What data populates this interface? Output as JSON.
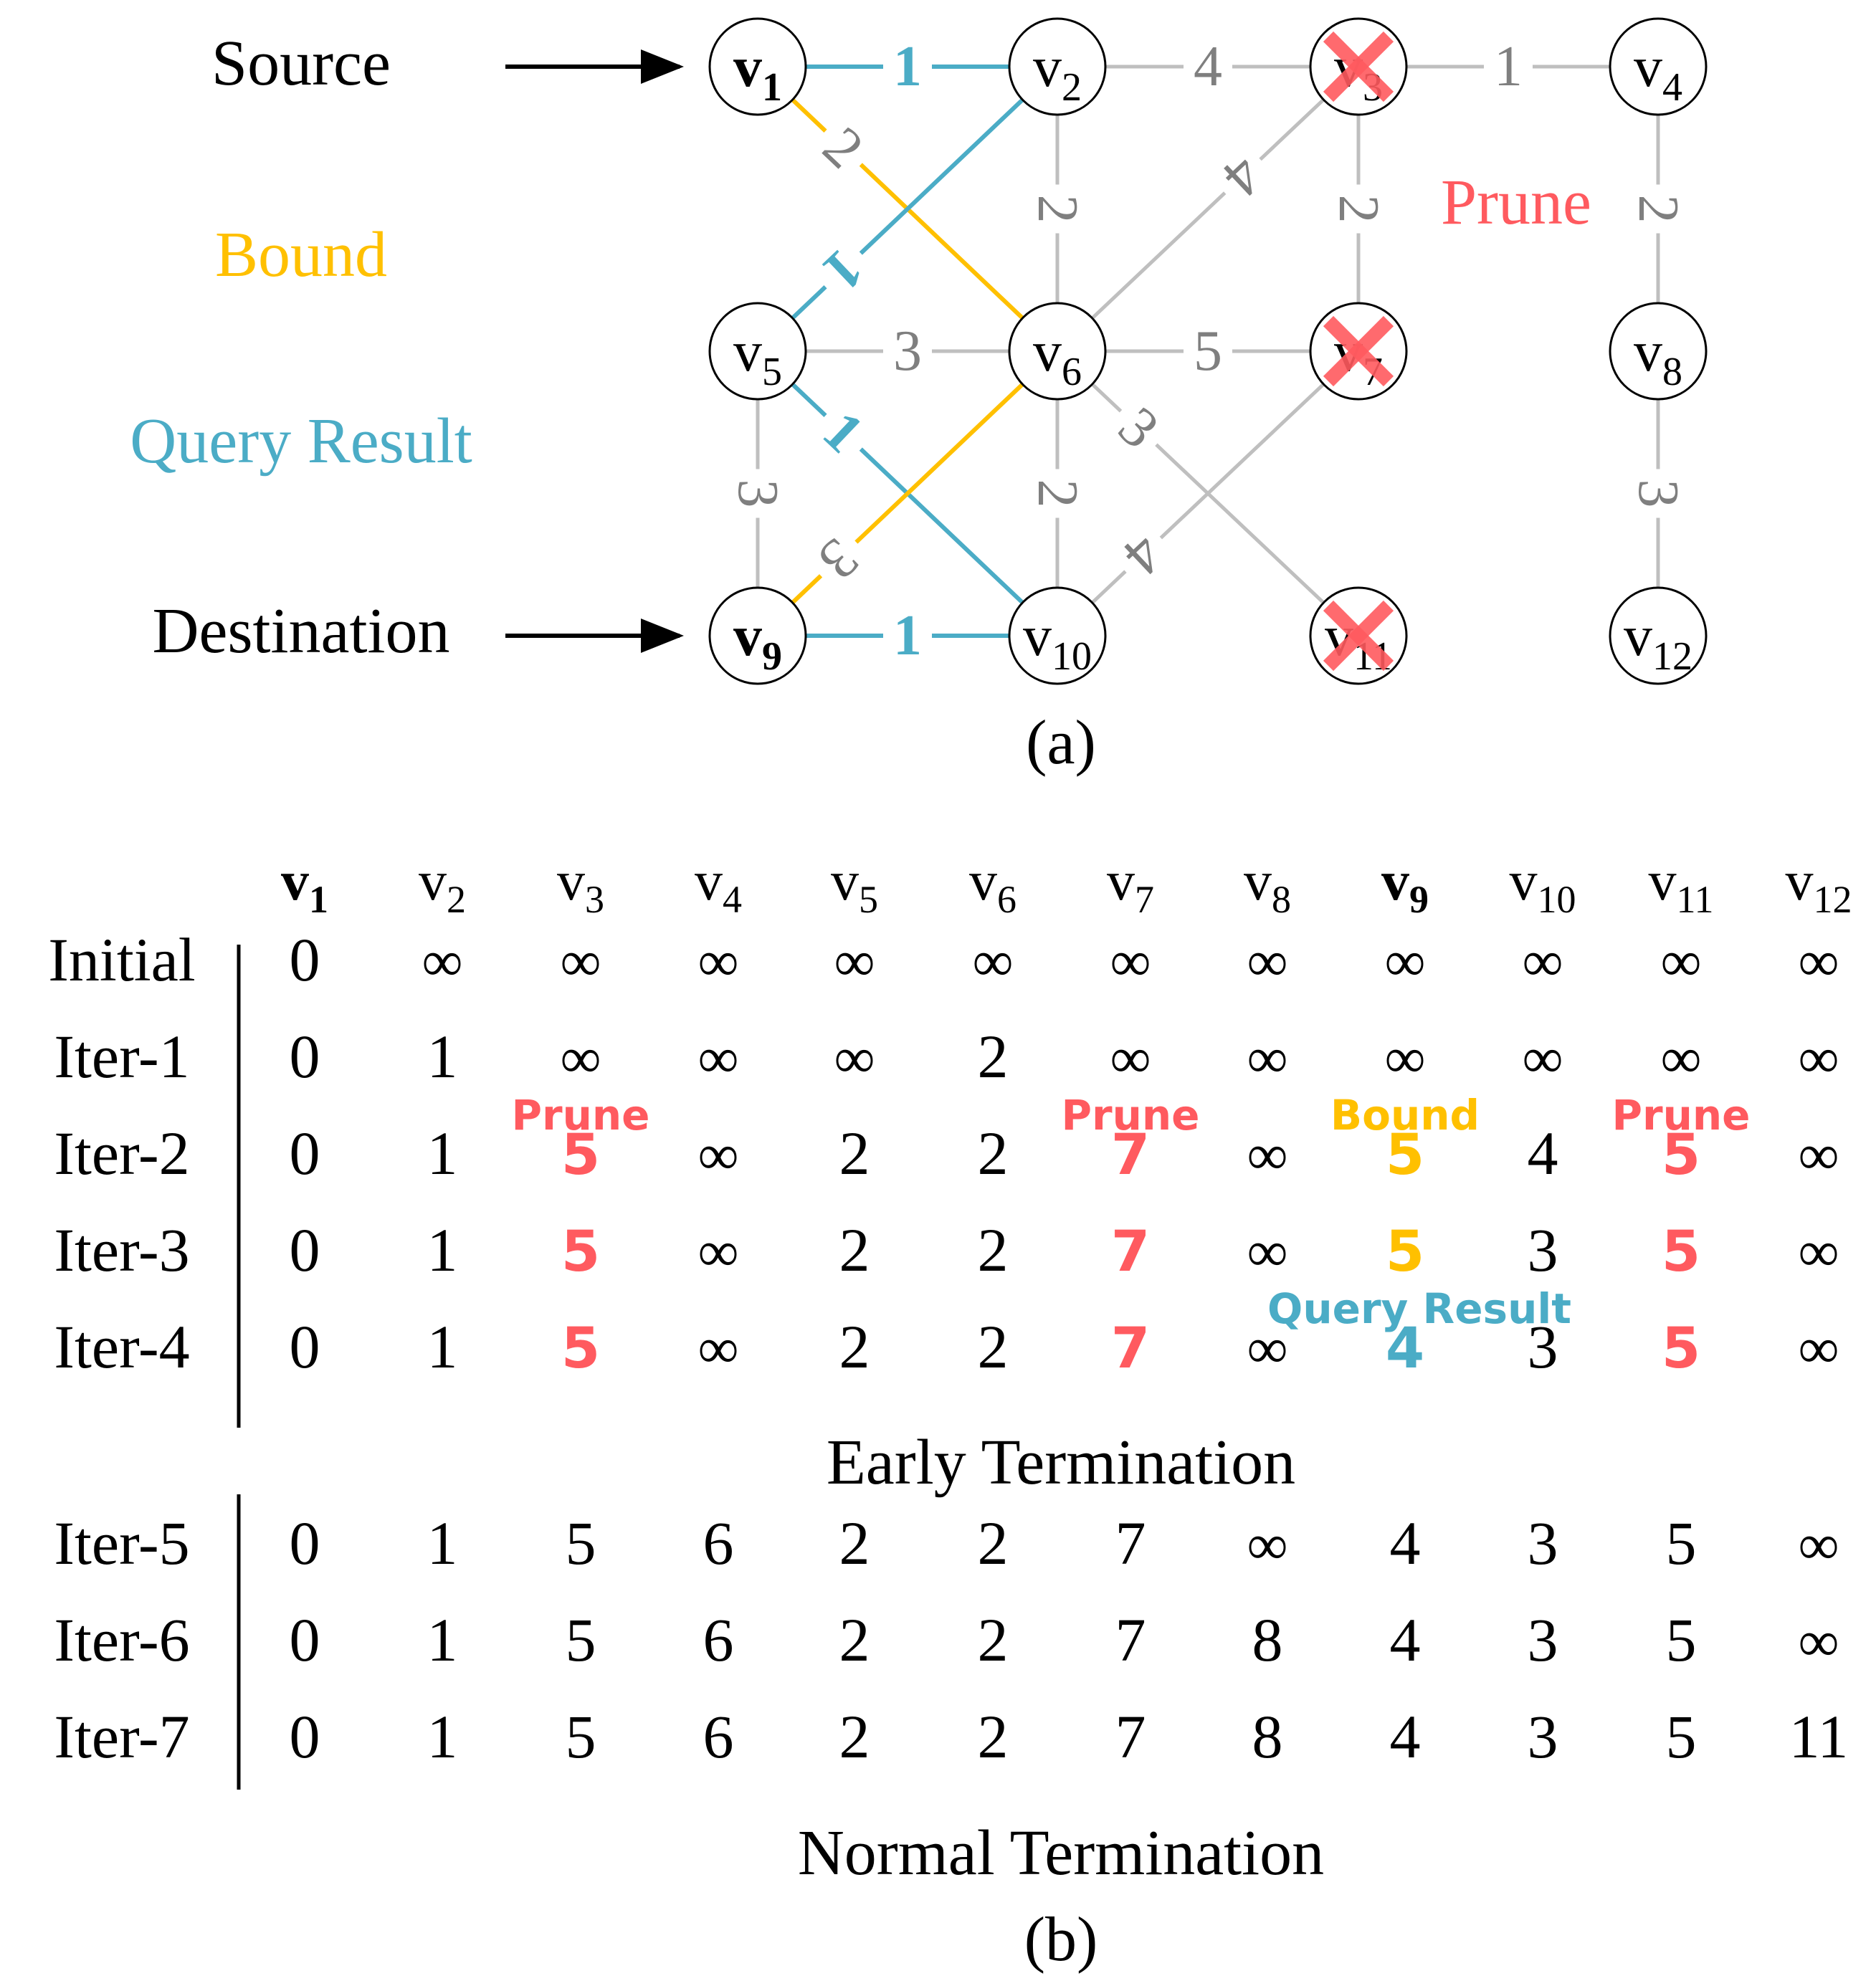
{
  "diagram": {
    "left_labels": {
      "source": "Source",
      "bound": "Bound",
      "query_result": "Query Result",
      "destination": "Destination"
    },
    "prune_label": "Prune",
    "caption": "(a)",
    "colors": {
      "query": "#4bacc6",
      "bound": "#ffc000",
      "prune": "#ff5a5f",
      "edge": "#bfbfbf",
      "weight": "#7f7f7f",
      "text": "#000000"
    },
    "nodes": [
      {
        "id": "v1",
        "base": "v",
        "sub": "1",
        "bold": true,
        "pruned": false
      },
      {
        "id": "v2",
        "base": "v",
        "sub": "2",
        "bold": false,
        "pruned": false
      },
      {
        "id": "v3",
        "base": "v",
        "sub": "3",
        "bold": false,
        "pruned": true
      },
      {
        "id": "v4",
        "base": "v",
        "sub": "4",
        "bold": false,
        "pruned": false
      },
      {
        "id": "v5",
        "base": "v",
        "sub": "5",
        "bold": false,
        "pruned": false
      },
      {
        "id": "v6",
        "base": "v",
        "sub": "6",
        "bold": false,
        "pruned": false
      },
      {
        "id": "v7",
        "base": "v",
        "sub": "7",
        "bold": false,
        "pruned": true
      },
      {
        "id": "v8",
        "base": "v",
        "sub": "8",
        "bold": false,
        "pruned": false
      },
      {
        "id": "v9",
        "base": "v",
        "sub": "9",
        "bold": true,
        "pruned": false
      },
      {
        "id": "v10",
        "base": "v",
        "sub": "10",
        "bold": false,
        "pruned": false
      },
      {
        "id": "v11",
        "base": "v",
        "sub": "11",
        "bold": false,
        "pruned": true
      },
      {
        "id": "v12",
        "base": "v",
        "sub": "12",
        "bold": false,
        "pruned": false
      }
    ],
    "edges": [
      {
        "from": "v1",
        "to": "v2",
        "weight": "1",
        "kind": "query"
      },
      {
        "from": "v2",
        "to": "v3",
        "weight": "4",
        "kind": "normal"
      },
      {
        "from": "v3",
        "to": "v4",
        "weight": "1",
        "kind": "normal"
      },
      {
        "from": "v1",
        "to": "v6",
        "weight": "2",
        "kind": "bound"
      },
      {
        "from": "v2",
        "to": "v5",
        "weight": "1",
        "kind": "query"
      },
      {
        "from": "v2",
        "to": "v6",
        "weight": "2",
        "kind": "normal"
      },
      {
        "from": "v3",
        "to": "v6",
        "weight": "4",
        "kind": "normal"
      },
      {
        "from": "v3",
        "to": "v7",
        "weight": "2",
        "kind": "normal"
      },
      {
        "from": "v4",
        "to": "v8",
        "weight": "2",
        "kind": "normal"
      },
      {
        "from": "v5",
        "to": "v6",
        "weight": "3",
        "kind": "normal"
      },
      {
        "from": "v6",
        "to": "v7",
        "weight": "5",
        "kind": "normal"
      },
      {
        "from": "v5",
        "to": "v10",
        "weight": "1",
        "kind": "query"
      },
      {
        "from": "v5",
        "to": "v9",
        "weight": "3",
        "kind": "normal"
      },
      {
        "from": "v6",
        "to": "v9",
        "weight": "3",
        "kind": "bound"
      },
      {
        "from": "v6",
        "to": "v10",
        "weight": "2",
        "kind": "normal"
      },
      {
        "from": "v6",
        "to": "v11",
        "weight": "3",
        "kind": "normal"
      },
      {
        "from": "v7",
        "to": "v10",
        "weight": "4",
        "kind": "normal"
      },
      {
        "from": "v8",
        "to": "v12",
        "weight": "3",
        "kind": "normal"
      },
      {
        "from": "v9",
        "to": "v10",
        "weight": "1",
        "kind": "query"
      }
    ]
  },
  "table": {
    "headers": [
      {
        "base": "v",
        "sub": "1",
        "bold": true
      },
      {
        "base": "v",
        "sub": "2",
        "bold": false
      },
      {
        "base": "v",
        "sub": "3",
        "bold": false
      },
      {
        "base": "v",
        "sub": "4",
        "bold": false
      },
      {
        "base": "v",
        "sub": "5",
        "bold": false
      },
      {
        "base": "v",
        "sub": "6",
        "bold": false
      },
      {
        "base": "v",
        "sub": "7",
        "bold": false
      },
      {
        "base": "v",
        "sub": "8",
        "bold": false
      },
      {
        "base": "v",
        "sub": "9",
        "bold": true
      },
      {
        "base": "v",
        "sub": "10",
        "bold": false
      },
      {
        "base": "v",
        "sub": "11",
        "bold": false
      },
      {
        "base": "v",
        "sub": "12",
        "bold": false
      }
    ],
    "rows": [
      {
        "label": "Initial",
        "values": [
          "0",
          "∞",
          "∞",
          "∞",
          "∞",
          "∞",
          "∞",
          "∞",
          "∞",
          "∞",
          "∞",
          "∞"
        ],
        "styles": {}
      },
      {
        "label": "Iter-1",
        "values": [
          "0",
          "1",
          "∞",
          "∞",
          "∞",
          "2",
          "∞",
          "∞",
          "∞",
          "∞",
          "∞",
          "∞"
        ],
        "styles": {}
      },
      {
        "label": "Iter-2",
        "values": [
          "0",
          "1",
          "5",
          "∞",
          "2",
          "2",
          "7",
          "∞",
          "5",
          "4",
          "5",
          "∞"
        ],
        "styles": {
          "2": "prune",
          "6": "prune",
          "8": "bound",
          "10": "prune"
        }
      },
      {
        "label": "Iter-3",
        "values": [
          "0",
          "1",
          "5",
          "∞",
          "2",
          "2",
          "7",
          "∞",
          "5",
          "3",
          "5",
          "∞"
        ],
        "styles": {
          "2": "prune",
          "6": "prune",
          "8": "bound",
          "10": "prune"
        }
      },
      {
        "label": "Iter-4",
        "values": [
          "0",
          "1",
          "5",
          "∞",
          "2",
          "2",
          "7",
          "∞",
          "4",
          "3",
          "5",
          "∞"
        ],
        "styles": {
          "2": "prune",
          "6": "prune",
          "8": "query",
          "10": "prune"
        }
      },
      {
        "label": "Iter-5",
        "values": [
          "0",
          "1",
          "5",
          "6",
          "2",
          "2",
          "7",
          "∞",
          "4",
          "3",
          "5",
          "∞"
        ],
        "styles": {}
      },
      {
        "label": "Iter-6",
        "values": [
          "0",
          "1",
          "5",
          "6",
          "2",
          "2",
          "7",
          "8",
          "4",
          "3",
          "5",
          "∞"
        ],
        "styles": {}
      },
      {
        "label": "Iter-7",
        "values": [
          "0",
          "1",
          "5",
          "6",
          "2",
          "2",
          "7",
          "8",
          "4",
          "3",
          "5",
          "11"
        ],
        "styles": {}
      }
    ],
    "annotations": [
      {
        "text": "Prune",
        "col": 2,
        "row": 2,
        "kind": "prune"
      },
      {
        "text": "Prune",
        "col": 6,
        "row": 2,
        "kind": "prune"
      },
      {
        "text": "Bound",
        "col": 8,
        "row": 2,
        "kind": "bound"
      },
      {
        "text": "Prune",
        "col": 10,
        "row": 2,
        "kind": "prune"
      },
      {
        "text": "Query Result",
        "col": 8,
        "row": 4,
        "kind": "query"
      }
    ],
    "early_termination": "Early Termination",
    "normal_termination": "Normal Termination",
    "caption": "(b)"
  }
}
